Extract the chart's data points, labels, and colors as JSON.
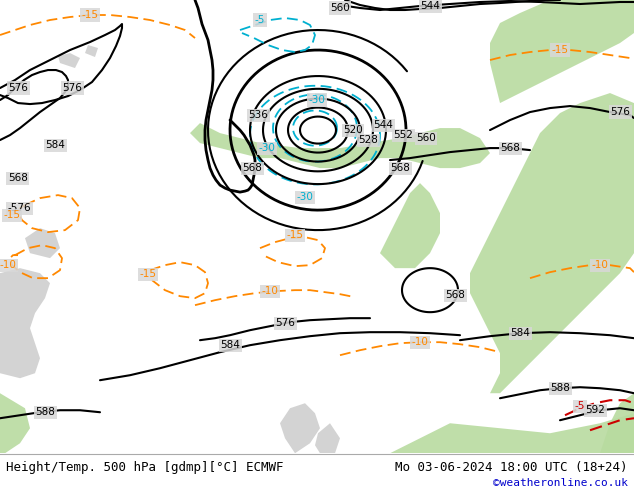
{
  "title_left": "Height/Temp. 500 hPa [gdmp][°C] ECMWF",
  "title_right": "Mo 03-06-2024 18:00 UTC (18+24)",
  "credit": "©weatheronline.co.uk",
  "bg_color": "#d8d8d8",
  "land_color_warm": "#b8dba0",
  "land_color_neutral": "#c8c8c8",
  "contour_color_black": "#000000",
  "contour_color_cyan": "#00b0d0",
  "contour_color_orange": "#ff8800",
  "contour_color_red": "#cc0000",
  "label_fontsize": 7.5,
  "title_fontsize": 9,
  "credit_fontsize": 8,
  "credit_color": "#0000cc",
  "figsize": [
    6.34,
    4.9
  ],
  "dpi": 100
}
